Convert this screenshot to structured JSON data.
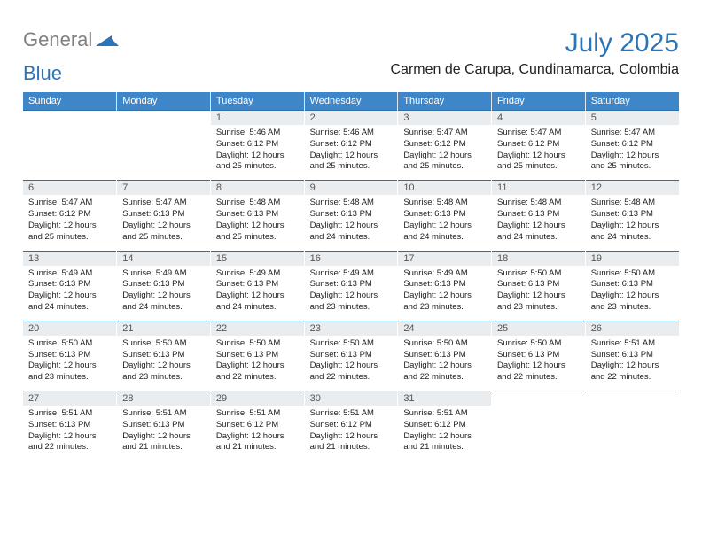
{
  "brand": {
    "part1": "General",
    "part2": "Blue"
  },
  "title": "July 2025",
  "location": "Carmen de Carupa, Cundinamarca, Colombia",
  "colors": {
    "header_bg": "#3e86c7",
    "header_text": "#ffffff",
    "brand_gray": "#808080",
    "brand_blue": "#2b74b8",
    "daynum_bg": "#e9edf0",
    "week_sep": "#2f6fa8",
    "page_bg": "#ffffff"
  },
  "day_headers": [
    "Sunday",
    "Monday",
    "Tuesday",
    "Wednesday",
    "Thursday",
    "Friday",
    "Saturday"
  ],
  "weeks": [
    [
      null,
      null,
      {
        "n": 1,
        "sunrise": "5:46 AM",
        "sunset": "6:12 PM",
        "daylight": "12 hours and 25 minutes."
      },
      {
        "n": 2,
        "sunrise": "5:46 AM",
        "sunset": "6:12 PM",
        "daylight": "12 hours and 25 minutes."
      },
      {
        "n": 3,
        "sunrise": "5:47 AM",
        "sunset": "6:12 PM",
        "daylight": "12 hours and 25 minutes."
      },
      {
        "n": 4,
        "sunrise": "5:47 AM",
        "sunset": "6:12 PM",
        "daylight": "12 hours and 25 minutes."
      },
      {
        "n": 5,
        "sunrise": "5:47 AM",
        "sunset": "6:12 PM",
        "daylight": "12 hours and 25 minutes."
      }
    ],
    [
      {
        "n": 6,
        "sunrise": "5:47 AM",
        "sunset": "6:12 PM",
        "daylight": "12 hours and 25 minutes."
      },
      {
        "n": 7,
        "sunrise": "5:47 AM",
        "sunset": "6:13 PM",
        "daylight": "12 hours and 25 minutes."
      },
      {
        "n": 8,
        "sunrise": "5:48 AM",
        "sunset": "6:13 PM",
        "daylight": "12 hours and 25 minutes."
      },
      {
        "n": 9,
        "sunrise": "5:48 AM",
        "sunset": "6:13 PM",
        "daylight": "12 hours and 24 minutes."
      },
      {
        "n": 10,
        "sunrise": "5:48 AM",
        "sunset": "6:13 PM",
        "daylight": "12 hours and 24 minutes."
      },
      {
        "n": 11,
        "sunrise": "5:48 AM",
        "sunset": "6:13 PM",
        "daylight": "12 hours and 24 minutes."
      },
      {
        "n": 12,
        "sunrise": "5:48 AM",
        "sunset": "6:13 PM",
        "daylight": "12 hours and 24 minutes."
      }
    ],
    [
      {
        "n": 13,
        "sunrise": "5:49 AM",
        "sunset": "6:13 PM",
        "daylight": "12 hours and 24 minutes."
      },
      {
        "n": 14,
        "sunrise": "5:49 AM",
        "sunset": "6:13 PM",
        "daylight": "12 hours and 24 minutes."
      },
      {
        "n": 15,
        "sunrise": "5:49 AM",
        "sunset": "6:13 PM",
        "daylight": "12 hours and 24 minutes."
      },
      {
        "n": 16,
        "sunrise": "5:49 AM",
        "sunset": "6:13 PM",
        "daylight": "12 hours and 23 minutes."
      },
      {
        "n": 17,
        "sunrise": "5:49 AM",
        "sunset": "6:13 PM",
        "daylight": "12 hours and 23 minutes."
      },
      {
        "n": 18,
        "sunrise": "5:50 AM",
        "sunset": "6:13 PM",
        "daylight": "12 hours and 23 minutes."
      },
      {
        "n": 19,
        "sunrise": "5:50 AM",
        "sunset": "6:13 PM",
        "daylight": "12 hours and 23 minutes."
      }
    ],
    [
      {
        "n": 20,
        "sunrise": "5:50 AM",
        "sunset": "6:13 PM",
        "daylight": "12 hours and 23 minutes."
      },
      {
        "n": 21,
        "sunrise": "5:50 AM",
        "sunset": "6:13 PM",
        "daylight": "12 hours and 23 minutes."
      },
      {
        "n": 22,
        "sunrise": "5:50 AM",
        "sunset": "6:13 PM",
        "daylight": "12 hours and 22 minutes."
      },
      {
        "n": 23,
        "sunrise": "5:50 AM",
        "sunset": "6:13 PM",
        "daylight": "12 hours and 22 minutes."
      },
      {
        "n": 24,
        "sunrise": "5:50 AM",
        "sunset": "6:13 PM",
        "daylight": "12 hours and 22 minutes."
      },
      {
        "n": 25,
        "sunrise": "5:50 AM",
        "sunset": "6:13 PM",
        "daylight": "12 hours and 22 minutes."
      },
      {
        "n": 26,
        "sunrise": "5:51 AM",
        "sunset": "6:13 PM",
        "daylight": "12 hours and 22 minutes."
      }
    ],
    [
      {
        "n": 27,
        "sunrise": "5:51 AM",
        "sunset": "6:13 PM",
        "daylight": "12 hours and 22 minutes."
      },
      {
        "n": 28,
        "sunrise": "5:51 AM",
        "sunset": "6:13 PM",
        "daylight": "12 hours and 21 minutes."
      },
      {
        "n": 29,
        "sunrise": "5:51 AM",
        "sunset": "6:12 PM",
        "daylight": "12 hours and 21 minutes."
      },
      {
        "n": 30,
        "sunrise": "5:51 AM",
        "sunset": "6:12 PM",
        "daylight": "12 hours and 21 minutes."
      },
      {
        "n": 31,
        "sunrise": "5:51 AM",
        "sunset": "6:12 PM",
        "daylight": "12 hours and 21 minutes."
      },
      null,
      null
    ]
  ],
  "labels": {
    "sunrise": "Sunrise:",
    "sunset": "Sunset:",
    "daylight": "Daylight:"
  }
}
